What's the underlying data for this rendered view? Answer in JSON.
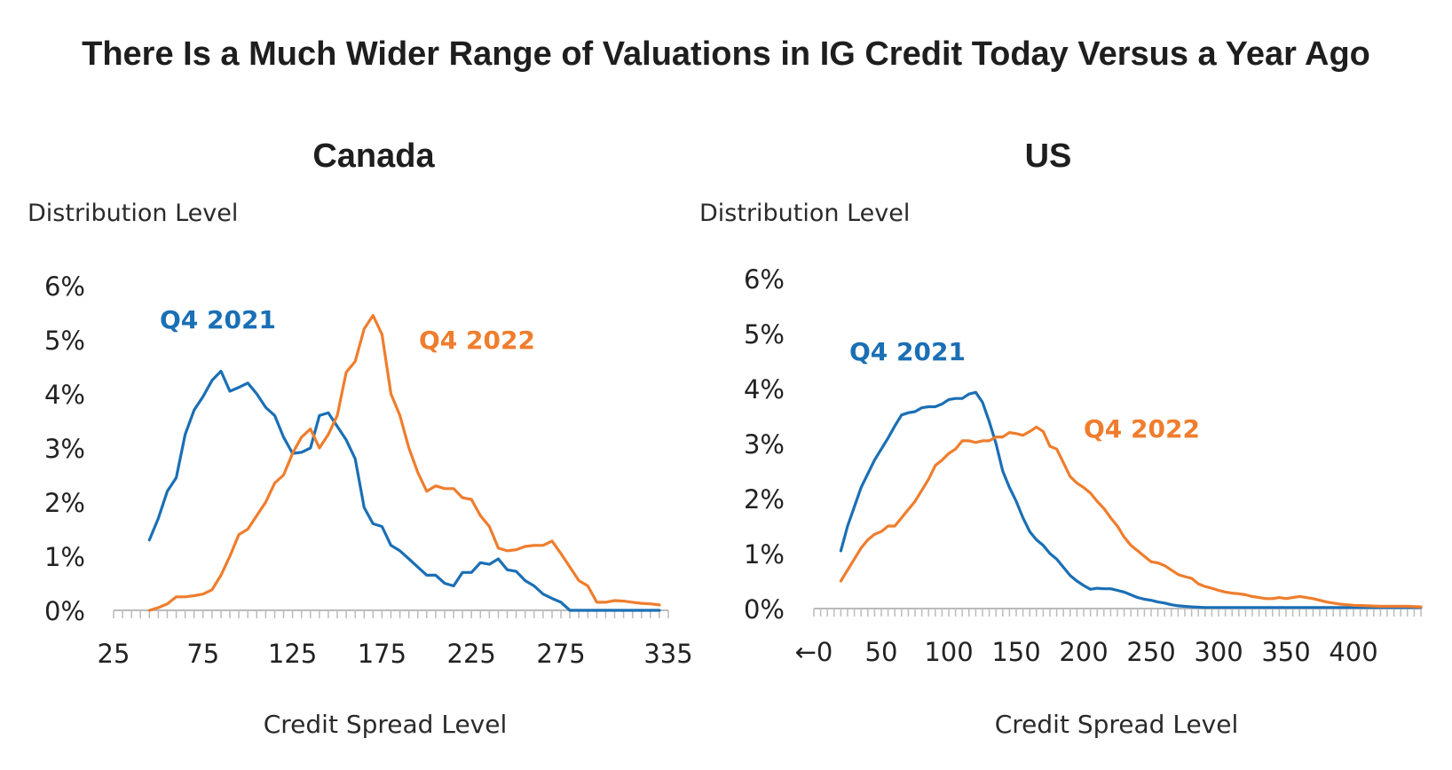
{
  "title": "There Is a Much Wider Range of Valuations in IG Credit Today Versus a Year Ago",
  "colors": {
    "q4_2021": "#1a6fb5",
    "q4_2022": "#ef7d2d",
    "axis": "#bbbbbb",
    "text": "#222222"
  },
  "chart_data": [
    {
      "type": "line",
      "title": "Canada",
      "ylabel": "Distribution Level",
      "xlabel": "Credit Spread Level",
      "xlim": [
        25,
        335
      ],
      "ylim": [
        0,
        6
      ],
      "x_ticks": [
        "25",
        "75",
        "125",
        "175",
        "225",
        "275",
        "335"
      ],
      "y_ticks": [
        "0%",
        "1%",
        "2%",
        "3%",
        "4%",
        "5%",
        "6%"
      ],
      "series": [
        {
          "name": "Q4 2021",
          "label_text": "Q4 2021",
          "points": [
            [
              45,
              1.3
            ],
            [
              50,
              1.7
            ],
            [
              55,
              2.2
            ],
            [
              60,
              2.45
            ],
            [
              65,
              3.25
            ],
            [
              70,
              3.7
            ],
            [
              75,
              3.95
            ],
            [
              80,
              4.25
            ],
            [
              85,
              4.42
            ],
            [
              90,
              4.05
            ],
            [
              95,
              4.12
            ],
            [
              100,
              4.2
            ],
            [
              105,
              4.0
            ],
            [
              110,
              3.75
            ],
            [
              115,
              3.6
            ],
            [
              120,
              3.2
            ],
            [
              125,
              2.9
            ],
            [
              130,
              2.92
            ],
            [
              135,
              3.0
            ],
            [
              140,
              3.6
            ],
            [
              145,
              3.65
            ],
            [
              150,
              3.4
            ],
            [
              155,
              3.15
            ],
            [
              160,
              2.8
            ],
            [
              165,
              1.9
            ],
            [
              170,
              1.6
            ],
            [
              175,
              1.55
            ],
            [
              180,
              1.2
            ],
            [
              185,
              1.1
            ],
            [
              190,
              0.95
            ],
            [
              195,
              0.8
            ],
            [
              200,
              0.65
            ],
            [
              205,
              0.65
            ],
            [
              210,
              0.5
            ],
            [
              215,
              0.45
            ],
            [
              220,
              0.7
            ],
            [
              225,
              0.7
            ],
            [
              230,
              0.88
            ],
            [
              235,
              0.85
            ],
            [
              240,
              0.95
            ],
            [
              245,
              0.75
            ],
            [
              250,
              0.72
            ],
            [
              255,
              0.55
            ],
            [
              260,
              0.45
            ],
            [
              265,
              0.3
            ],
            [
              270,
              0.22
            ],
            [
              275,
              0.15
            ],
            [
              280,
              0.0
            ],
            [
              285,
              0.0
            ],
            [
              290,
              0.0
            ],
            [
              300,
              0.0
            ],
            [
              310,
              0.0
            ],
            [
              320,
              0.0
            ],
            [
              330,
              0.0
            ]
          ]
        },
        {
          "name": "Q4 2022",
          "label_text": "Q4 2022",
          "points": [
            [
              45,
              0.0
            ],
            [
              50,
              0.05
            ],
            [
              55,
              0.12
            ],
            [
              60,
              0.25
            ],
            [
              65,
              0.25
            ],
            [
              70,
              0.27
            ],
            [
              75,
              0.3
            ],
            [
              80,
              0.38
            ],
            [
              85,
              0.65
            ],
            [
              90,
              1.0
            ],
            [
              95,
              1.4
            ],
            [
              100,
              1.5
            ],
            [
              105,
              1.75
            ],
            [
              110,
              2.0
            ],
            [
              115,
              2.35
            ],
            [
              120,
              2.5
            ],
            [
              125,
              2.9
            ],
            [
              130,
              3.2
            ],
            [
              135,
              3.35
            ],
            [
              140,
              3.0
            ],
            [
              145,
              3.25
            ],
            [
              150,
              3.6
            ],
            [
              155,
              4.4
            ],
            [
              160,
              4.6
            ],
            [
              165,
              5.2
            ],
            [
              170,
              5.45
            ],
            [
              175,
              5.1
            ],
            [
              180,
              4.0
            ],
            [
              185,
              3.6
            ],
            [
              190,
              3.0
            ],
            [
              195,
              2.55
            ],
            [
              200,
              2.2
            ],
            [
              205,
              2.3
            ],
            [
              210,
              2.25
            ],
            [
              215,
              2.25
            ],
            [
              220,
              2.08
            ],
            [
              225,
              2.05
            ],
            [
              230,
              1.75
            ],
            [
              235,
              1.55
            ],
            [
              240,
              1.15
            ],
            [
              245,
              1.1
            ],
            [
              250,
              1.12
            ],
            [
              255,
              1.18
            ],
            [
              260,
              1.2
            ],
            [
              265,
              1.2
            ],
            [
              270,
              1.28
            ],
            [
              275,
              1.05
            ],
            [
              280,
              0.8
            ],
            [
              285,
              0.55
            ],
            [
              290,
              0.45
            ],
            [
              295,
              0.15
            ],
            [
              300,
              0.15
            ],
            [
              305,
              0.18
            ],
            [
              310,
              0.17
            ],
            [
              315,
              0.15
            ],
            [
              320,
              0.13
            ],
            [
              325,
              0.12
            ],
            [
              330,
              0.1
            ]
          ]
        }
      ]
    },
    {
      "type": "line",
      "title": "US",
      "ylabel": "Distribution Level",
      "xlabel": "Credit Spread Level",
      "xlim": [
        0,
        450
      ],
      "ylim": [
        0,
        6
      ],
      "x_ticks": [
        "←0",
        "50",
        "100",
        "150",
        "200",
        "250",
        "300",
        "350",
        "400"
      ],
      "y_ticks": [
        "0%",
        "1%",
        "2%",
        "3%",
        "4%",
        "5%",
        "6%"
      ],
      "series": [
        {
          "name": "Q4 2021",
          "label_text": "Q4 2021",
          "points": [
            [
              20,
              1.05
            ],
            [
              25,
              1.5
            ],
            [
              30,
              1.85
            ],
            [
              35,
              2.2
            ],
            [
              40,
              2.45
            ],
            [
              45,
              2.7
            ],
            [
              50,
              2.9
            ],
            [
              55,
              3.1
            ],
            [
              60,
              3.32
            ],
            [
              65,
              3.52
            ],
            [
              70,
              3.56
            ],
            [
              75,
              3.58
            ],
            [
              80,
              3.65
            ],
            [
              85,
              3.67
            ],
            [
              90,
              3.67
            ],
            [
              95,
              3.72
            ],
            [
              100,
              3.8
            ],
            [
              105,
              3.82
            ],
            [
              110,
              3.82
            ],
            [
              115,
              3.9
            ],
            [
              120,
              3.93
            ],
            [
              125,
              3.75
            ],
            [
              130,
              3.4
            ],
            [
              135,
              3.0
            ],
            [
              140,
              2.5
            ],
            [
              145,
              2.2
            ],
            [
              150,
              1.95
            ],
            [
              155,
              1.65
            ],
            [
              160,
              1.4
            ],
            [
              165,
              1.25
            ],
            [
              170,
              1.15
            ],
            [
              175,
              1.0
            ],
            [
              180,
              0.9
            ],
            [
              185,
              0.75
            ],
            [
              190,
              0.6
            ],
            [
              195,
              0.5
            ],
            [
              200,
              0.42
            ],
            [
              205,
              0.35
            ],
            [
              210,
              0.37
            ],
            [
              215,
              0.36
            ],
            [
              220,
              0.36
            ],
            [
              225,
              0.33
            ],
            [
              230,
              0.3
            ],
            [
              235,
              0.25
            ],
            [
              240,
              0.2
            ],
            [
              245,
              0.17
            ],
            [
              250,
              0.15
            ],
            [
              255,
              0.12
            ],
            [
              260,
              0.1
            ],
            [
              265,
              0.07
            ],
            [
              270,
              0.05
            ],
            [
              275,
              0.04
            ],
            [
              280,
              0.03
            ],
            [
              290,
              0.02
            ],
            [
              300,
              0.02
            ],
            [
              320,
              0.02
            ],
            [
              340,
              0.02
            ],
            [
              360,
              0.02
            ],
            [
              380,
              0.02
            ],
            [
              400,
              0.02
            ],
            [
              420,
              0.02
            ],
            [
              440,
              0.02
            ],
            [
              450,
              0.02
            ]
          ]
        },
        {
          "name": "Q4 2022",
          "label_text": "Q4 2022",
          "points": [
            [
              20,
              0.5
            ],
            [
              25,
              0.7
            ],
            [
              30,
              0.9
            ],
            [
              35,
              1.1
            ],
            [
              40,
              1.25
            ],
            [
              45,
              1.35
            ],
            [
              50,
              1.4
            ],
            [
              55,
              1.5
            ],
            [
              60,
              1.5
            ],
            [
              65,
              1.65
            ],
            [
              70,
              1.8
            ],
            [
              75,
              1.95
            ],
            [
              80,
              2.15
            ],
            [
              85,
              2.35
            ],
            [
              90,
              2.6
            ],
            [
              95,
              2.7
            ],
            [
              100,
              2.82
            ],
            [
              105,
              2.9
            ],
            [
              110,
              3.05
            ],
            [
              115,
              3.05
            ],
            [
              120,
              3.02
            ],
            [
              125,
              3.05
            ],
            [
              130,
              3.05
            ],
            [
              135,
              3.12
            ],
            [
              140,
              3.12
            ],
            [
              145,
              3.2
            ],
            [
              150,
              3.18
            ],
            [
              155,
              3.15
            ],
            [
              160,
              3.22
            ],
            [
              165,
              3.3
            ],
            [
              170,
              3.22
            ],
            [
              175,
              2.95
            ],
            [
              180,
              2.9
            ],
            [
              185,
              2.65
            ],
            [
              190,
              2.4
            ],
            [
              195,
              2.28
            ],
            [
              200,
              2.2
            ],
            [
              205,
              2.1
            ],
            [
              210,
              1.95
            ],
            [
              215,
              1.82
            ],
            [
              220,
              1.65
            ],
            [
              225,
              1.5
            ],
            [
              230,
              1.3
            ],
            [
              235,
              1.15
            ],
            [
              240,
              1.05
            ],
            [
              245,
              0.95
            ],
            [
              250,
              0.85
            ],
            [
              255,
              0.83
            ],
            [
              260,
              0.78
            ],
            [
              265,
              0.7
            ],
            [
              270,
              0.62
            ],
            [
              275,
              0.58
            ],
            [
              280,
              0.55
            ],
            [
              285,
              0.45
            ],
            [
              290,
              0.4
            ],
            [
              295,
              0.37
            ],
            [
              300,
              0.33
            ],
            [
              305,
              0.3
            ],
            [
              310,
              0.28
            ],
            [
              315,
              0.27
            ],
            [
              320,
              0.25
            ],
            [
              325,
              0.22
            ],
            [
              330,
              0.2
            ],
            [
              335,
              0.18
            ],
            [
              340,
              0.18
            ],
            [
              345,
              0.2
            ],
            [
              350,
              0.18
            ],
            [
              355,
              0.2
            ],
            [
              360,
              0.22
            ],
            [
              365,
              0.2
            ],
            [
              370,
              0.18
            ],
            [
              375,
              0.15
            ],
            [
              380,
              0.12
            ],
            [
              385,
              0.1
            ],
            [
              390,
              0.08
            ],
            [
              395,
              0.07
            ],
            [
              400,
              0.06
            ],
            [
              410,
              0.05
            ],
            [
              420,
              0.04
            ],
            [
              430,
              0.04
            ],
            [
              440,
              0.04
            ],
            [
              450,
              0.03
            ]
          ]
        }
      ]
    }
  ]
}
